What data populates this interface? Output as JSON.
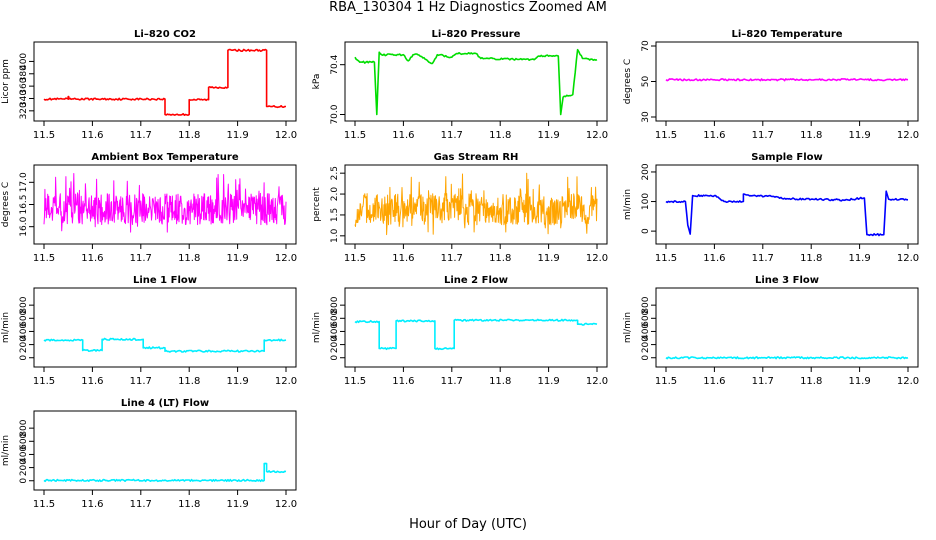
{
  "figure": {
    "title": "RBA_130304  1 Hz Diagnostics Zoomed AM",
    "xlabel": "Hour of Day (UTC)"
  },
  "chart_data": [
    {
      "type": "line",
      "title": "Li–820 CO2",
      "ylabel": "Licor ppm",
      "color": "#ff0000",
      "xlim": [
        11.5,
        12.0
      ],
      "ylim": [
        310,
        425
      ],
      "xticks": [
        "11.5",
        "11.6",
        "11.7",
        "11.8",
        "11.9",
        "12.0"
      ],
      "yticks": [
        "320",
        "340",
        "360",
        "380",
        "400"
      ],
      "series": [
        {
          "name": "CO2",
          "x": [
            11.5,
            11.55,
            11.55,
            11.551,
            11.551,
            11.75,
            11.75,
            11.8,
            11.8,
            11.84,
            11.84,
            11.88,
            11.88,
            11.96,
            11.96,
            12.0
          ],
          "y": [
            339,
            339,
            343,
            343,
            339,
            339,
            314,
            314,
            338,
            338,
            358,
            358,
            418,
            418,
            327,
            327
          ]
        }
      ]
    },
    {
      "type": "line",
      "title": "Li–820 Pressure",
      "ylabel": "kPa",
      "color": "#00dd00",
      "xlim": [
        11.5,
        12.0
      ],
      "ylim": [
        69.98,
        70.55
      ],
      "xticks": [
        "11.5",
        "11.6",
        "11.7",
        "11.8",
        "11.9",
        "12.0"
      ],
      "yticks": [
        "70.0",
        "70.4"
      ],
      "series": [
        {
          "name": "Pressure",
          "x": [
            11.5,
            11.51,
            11.54,
            11.545,
            11.55,
            11.555,
            11.6,
            11.61,
            11.62,
            11.63,
            11.66,
            11.67,
            11.7,
            11.71,
            11.75,
            11.76,
            11.87,
            11.88,
            11.92,
            11.925,
            11.93,
            11.95,
            11.96,
            11.97,
            12.0
          ],
          "y": [
            70.46,
            70.42,
            70.42,
            70.0,
            70.5,
            70.48,
            70.48,
            70.43,
            70.48,
            70.48,
            70.41,
            70.48,
            70.46,
            70.49,
            70.49,
            70.45,
            70.44,
            70.47,
            70.47,
            70.0,
            70.14,
            70.16,
            70.52,
            70.45,
            70.44
          ]
        }
      ]
    },
    {
      "type": "line",
      "title": "Li–820 Temperature",
      "ylabel": "degrees C",
      "color": "#ff00ff",
      "xlim": [
        11.5,
        12.0
      ],
      "ylim": [
        30,
        70
      ],
      "xticks": [
        "11.5",
        "11.6",
        "11.7",
        "11.8",
        "11.9",
        "12.0"
      ],
      "yticks": [
        "30",
        "50",
        "70"
      ],
      "series": [
        {
          "name": "Temperature",
          "x": [
            11.5,
            12.0
          ],
          "y": [
            51,
            51
          ]
        }
      ]
    },
    {
      "type": "line",
      "title": "Ambient Box Temperature",
      "ylabel": "degrees C",
      "color": "#ff00ff",
      "xlim": [
        11.5,
        12.0
      ],
      "ylim": [
        15.7,
        17.3
      ],
      "xticks": [
        "11.5",
        "11.6",
        "11.7",
        "11.8",
        "11.9",
        "12.0"
      ],
      "yticks": [
        "16.0",
        "16.5",
        "17.0"
      ],
      "series": [
        {
          "name": "Box Temp",
          "x": [
            11.5,
            12.0
          ],
          "y": [
            15.8,
            17.2
          ],
          "noise": "dense oscillation between 15.8 and 17.2 around 16.4"
        }
      ]
    },
    {
      "type": "line",
      "title": "Gas Stream RH",
      "ylabel": "percent",
      "color": "#ffa500",
      "xlim": [
        11.5,
        12.0
      ],
      "ylim": [
        0.9,
        2.6
      ],
      "xticks": [
        "11.5",
        "11.6",
        "11.7",
        "11.8",
        "11.9",
        "12.0"
      ],
      "yticks": [
        "1.0",
        "1.5",
        "2.0",
        "2.5"
      ],
      "series": [
        {
          "name": "RH",
          "x": [
            11.5,
            12.0
          ],
          "y": [
            1.0,
            2.5
          ],
          "noise": "dense oscillation between 1.0 and 2.5 around 1.4"
        }
      ]
    },
    {
      "type": "line",
      "title": "Sample Flow",
      "ylabel": "ml/min",
      "color": "#0000ff",
      "xlim": [
        11.5,
        12.0
      ],
      "ylim": [
        -30,
        210
      ],
      "xticks": [
        "11.5",
        "11.6",
        "11.7",
        "11.8",
        "11.9",
        "12.0"
      ],
      "yticks": [
        "0",
        "100",
        "200"
      ],
      "series": [
        {
          "name": "Sample Flow",
          "x": [
            11.5,
            11.54,
            11.545,
            11.55,
            11.555,
            11.6,
            11.62,
            11.66,
            11.66,
            11.67,
            11.71,
            11.75,
            11.8,
            11.87,
            11.91,
            11.915,
            11.95,
            11.955,
            11.96,
            12.0
          ],
          "y": [
            100,
            100,
            20,
            -10,
            120,
            120,
            100,
            100,
            125,
            122,
            118,
            110,
            108,
            105,
            112,
            -12,
            -12,
            135,
            108,
            106
          ]
        }
      ]
    },
    {
      "type": "line",
      "title": "Line 1 Flow",
      "ylabel": "ml/min",
      "color": "#00eeff",
      "xlim": [
        11.5,
        12.0
      ],
      "ylim": [
        -80,
        1000
      ],
      "xticks": [
        "11.5",
        "11.6",
        "11.7",
        "11.8",
        "11.9",
        "12.0"
      ],
      "yticks": [
        "0",
        "200",
        "400",
        "600",
        "800"
      ],
      "series": [
        {
          "name": "Line 1",
          "x": [
            11.5,
            11.58,
            11.58,
            11.62,
            11.62,
            11.705,
            11.705,
            11.75,
            11.75,
            11.955,
            11.955,
            12.0
          ],
          "y": [
            270,
            270,
            110,
            110,
            280,
            280,
            150,
            150,
            100,
            100,
            270,
            270
          ]
        }
      ]
    },
    {
      "type": "line",
      "title": "Line 2 Flow",
      "ylabel": "ml/min",
      "color": "#00eeff",
      "xlim": [
        11.5,
        12.0
      ],
      "ylim": [
        -80,
        1000
      ],
      "xticks": [
        "11.5",
        "11.6",
        "11.7",
        "11.8",
        "11.9",
        "12.0"
      ],
      "yticks": [
        "0",
        "200",
        "400",
        "600",
        "800"
      ],
      "series": [
        {
          "name": "Line 2",
          "x": [
            11.5,
            11.55,
            11.55,
            11.585,
            11.585,
            11.665,
            11.665,
            11.705,
            11.705,
            11.96,
            11.96,
            12.0
          ],
          "y": [
            550,
            550,
            140,
            140,
            560,
            560,
            140,
            140,
            570,
            570,
            510,
            510
          ]
        }
      ]
    },
    {
      "type": "line",
      "title": "Line 3 Flow",
      "ylabel": "ml/min",
      "color": "#00eeff",
      "xlim": [
        11.5,
        12.0
      ],
      "ylim": [
        -80,
        1000
      ],
      "xticks": [
        "11.5",
        "11.6",
        "11.7",
        "11.8",
        "11.9",
        "12.0"
      ],
      "yticks": [
        "0",
        "200",
        "400",
        "600",
        "800"
      ],
      "series": [
        {
          "name": "Line 3",
          "x": [
            11.5,
            12.0
          ],
          "y": [
            0,
            0
          ]
        }
      ]
    },
    {
      "type": "line",
      "title": "Line 4 (LT) Flow",
      "ylabel": "ml/min",
      "color": "#00eeff",
      "xlim": [
        11.5,
        12.0
      ],
      "ylim": [
        -80,
        1000
      ],
      "xticks": [
        "11.5",
        "11.6",
        "11.7",
        "11.8",
        "11.9",
        "12.0"
      ],
      "yticks": [
        "0",
        "200",
        "400",
        "600",
        "800"
      ],
      "series": [
        {
          "name": "Line 4",
          "x": [
            11.5,
            11.955,
            11.955,
            11.96,
            11.96,
            12.0
          ],
          "y": [
            5,
            5,
            260,
            260,
            140,
            140
          ]
        }
      ]
    }
  ]
}
